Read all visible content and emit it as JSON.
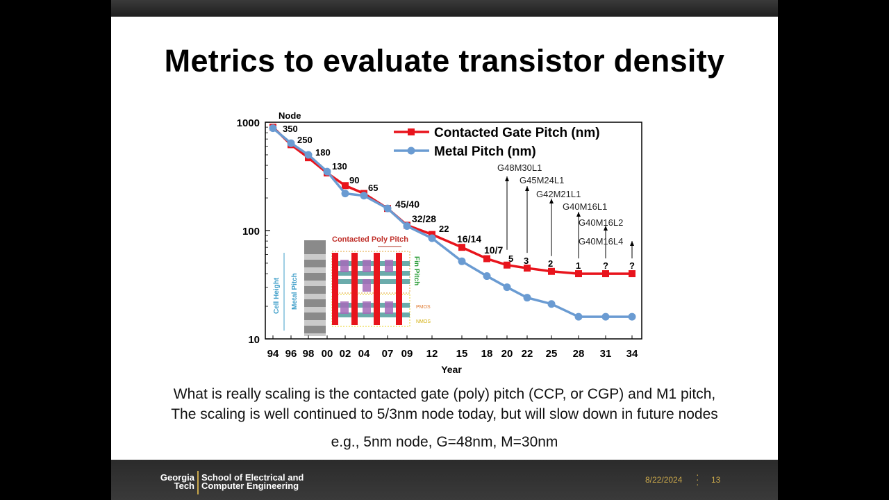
{
  "slide": {
    "title": "Metrics to evaluate transistor density",
    "body_line1": "What is really scaling is the contacted gate (poly) pitch (CCP, or CGP) and M1 pitch,",
    "body_line2": "The scaling is well continued to 5/3nm node today, but will slow down in future nodes",
    "body_line3": "e.g., 5nm node, G=48nm, M=30nm"
  },
  "footer": {
    "logo_line1": "Georgia",
    "logo_line2": "Tech",
    "school_line1": "School of Electrical and",
    "school_line2": "Computer Engineering",
    "date": "8/22/2024",
    "page": "13"
  },
  "colors": {
    "gate_series": "#e8141c",
    "metal_series": "#6a9bd2",
    "accent_gold": "#c9a74b"
  },
  "chart_data": {
    "type": "line",
    "xlabel": "Year",
    "ylabel": "",
    "yscale": "log",
    "ylim": [
      10,
      1000
    ],
    "y_ticks": [
      "10",
      "100",
      "1000"
    ],
    "categories": [
      "94",
      "96",
      "98",
      "00",
      "02",
      "04",
      "07",
      "09",
      "12",
      "15",
      "18",
      "20",
      "22",
      "25",
      "28",
      "31",
      "34"
    ],
    "series": [
      {
        "name": "Contacted Gate Pitch (nm)",
        "values": [
          900,
          620,
          470,
          340,
          260,
          220,
          160,
          112,
          92,
          70,
          55,
          48,
          45,
          42,
          40,
          40,
          40
        ]
      },
      {
        "name": "Metal Pitch (nm)",
        "values": [
          880,
          640,
          500,
          350,
          220,
          210,
          160,
          110,
          85,
          52,
          38,
          30,
          24,
          21,
          16,
          16,
          16
        ]
      }
    ],
    "legend_position": "top-right",
    "node_title": "Node",
    "node_labels": [
      {
        "year": "94",
        "text": "350"
      },
      {
        "year": "96",
        "text": "250"
      },
      {
        "year": "98",
        "text": "180"
      },
      {
        "year": "00",
        "text": "130"
      },
      {
        "year": "02",
        "text": "90"
      },
      {
        "year": "04",
        "text": "65"
      },
      {
        "year": "07",
        "text": "45/40"
      },
      {
        "year": "09",
        "text": "32/28"
      },
      {
        "year": "12",
        "text": "22"
      },
      {
        "year": "15",
        "text": "16/14"
      },
      {
        "year": "18",
        "text": "10/7"
      },
      {
        "year": "20",
        "text": "5"
      },
      {
        "year": "22",
        "text": "3"
      },
      {
        "year": "25",
        "text": "2"
      },
      {
        "year": "28",
        "text": "1"
      },
      {
        "year": "31",
        "text": "?"
      },
      {
        "year": "34",
        "text": "?"
      }
    ],
    "annotations": [
      {
        "year": "20",
        "text": "G48M30L1"
      },
      {
        "year": "22",
        "text": "G45M24L1"
      },
      {
        "year": "25",
        "text": "G42M21L1"
      },
      {
        "year": "28",
        "text": "G40M16L1"
      },
      {
        "year": "31",
        "text": "G40M16L2"
      },
      {
        "year": "34",
        "text": "G40M16L4"
      }
    ],
    "inset": {
      "poly_pitch_label": "Contacted Poly Pitch",
      "fin_pitch_label": "Fin Pitch",
      "cell_height_label": "Cell Height",
      "metal_pitch_label": "Metal Pitch",
      "pmos_label": "PMOS",
      "nmos_label": "NMOS"
    }
  }
}
